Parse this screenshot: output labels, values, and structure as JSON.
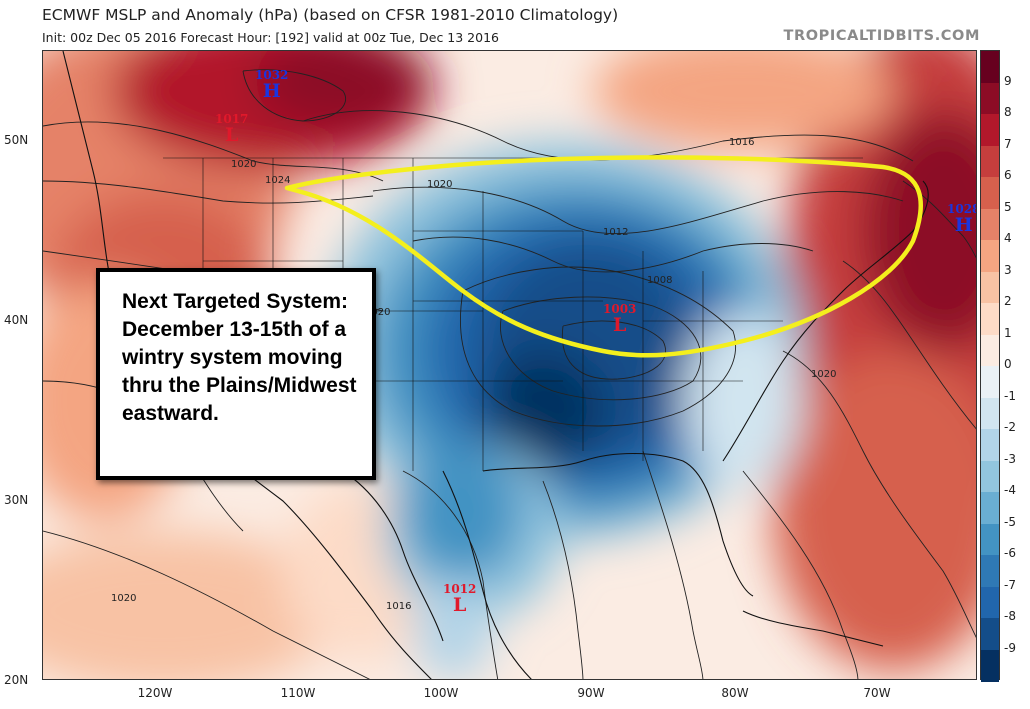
{
  "header": {
    "title": "ECMWF MSLP and Anomaly (hPa) (based on CFSR 1981-2010 Climatology)",
    "subtitle": "Init: 00z Dec 05 2016   Forecast Hour: [192]   valid at 00z Tue, Dec 13 2016",
    "credit": "TROPICALTIDBITS.COM"
  },
  "annotation": {
    "text": "Next Targeted System: December 13-15th of a wintry system moving thru the Plains/Midwest eastward.",
    "highlight_color": "#f4ef1d"
  },
  "latitude_labels": [
    "50N",
    "40N",
    "30N",
    "20N"
  ],
  "longitude_labels": [
    "120W",
    "110W",
    "100W",
    "90W",
    "80W",
    "70W"
  ],
  "colorbar": {
    "labels": [
      "9",
      "8",
      "7",
      "6",
      "5",
      "4",
      "3",
      "2",
      "1",
      "0",
      "-1",
      "-2",
      "-3",
      "-4",
      "-5",
      "-6",
      "-7",
      "-8",
      "-9"
    ],
    "colors": [
      "#67001f",
      "#8c0c25",
      "#b2182b",
      "#c53e3d",
      "#d6604d",
      "#e58268",
      "#f4a582",
      "#f8c2a4",
      "#fddbc7",
      "#fbece3",
      "#eaf1f6",
      "#d1e5f0",
      "#b2d4e8",
      "#92c5de",
      "#6aaed3",
      "#4393c3",
      "#2f79b5",
      "#2166ac",
      "#144d89",
      "#053061"
    ]
  },
  "pressure_centers": [
    {
      "type": "H",
      "value": "1032",
      "color": "#1a35e0"
    },
    {
      "type": "L",
      "value": "1017",
      "color": "#e0192b"
    },
    {
      "type": "L",
      "value": "1003",
      "color": "#e0192b"
    },
    {
      "type": "H",
      "value": "1028",
      "color": "#1a35e0"
    },
    {
      "type": "L",
      "value": "1012",
      "color": "#e0192b"
    }
  ],
  "isobar_labels": [
    "1020",
    "1024",
    "1020",
    "1016",
    "1012",
    "1008",
    "1020",
    "1016",
    "1020",
    "1020"
  ]
}
